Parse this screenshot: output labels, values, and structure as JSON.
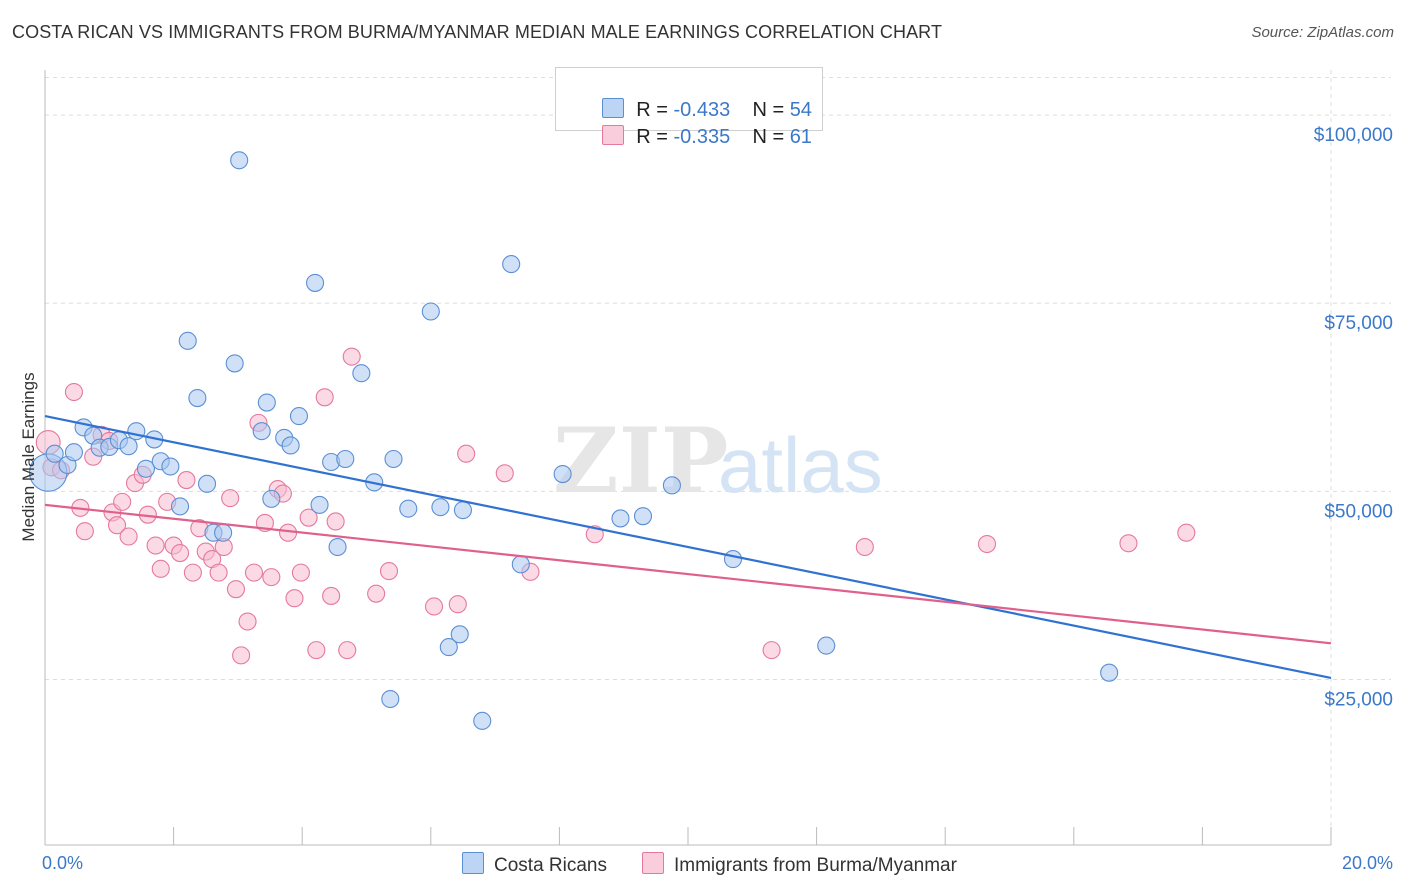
{
  "title": "COSTA RICAN VS IMMIGRANTS FROM BURMA/MYANMAR MEDIAN MALE EARNINGS CORRELATION CHART",
  "source": "Source: ZipAtlas.com",
  "colors": {
    "blue_fill": "#a9c8f0",
    "blue_stroke": "#5b8fd4",
    "blue_line": "#2f72d1",
    "pink_fill": "#f7bcd0",
    "pink_stroke": "#e5799d",
    "pink_line": "#e0608d",
    "tick_text": "#3b78c9",
    "grid": "#dddddd"
  },
  "legend": {
    "row1": {
      "r_label": "R = ",
      "r_value": "-0.433",
      "n_label": "N = ",
      "n_value": "54"
    },
    "row2": {
      "r_label": "R = ",
      "r_value": "-0.335",
      "n_label": "N = ",
      "n_value": "61"
    }
  },
  "bottom_legend": {
    "series1": "Costa Ricans",
    "series2": "Immigrants from Burma/Myanmar"
  },
  "chart_data": {
    "type": "scatter",
    "title": "COSTA RICAN VS IMMIGRANTS FROM BURMA/MYANMAR MEDIAN MALE EARNINGS CORRELATION CHART",
    "xlabel": "",
    "ylabel": "Median Male Earnings",
    "xlim": [
      0,
      20
    ],
    "ylim": [
      3000,
      105000
    ],
    "x_tick_labels": {
      "left": "0.0%",
      "right": "20.0%"
    },
    "y_ticks": [
      {
        "value": 25000,
        "label": "$25,000"
      },
      {
        "value": 50000,
        "label": "$50,000"
      },
      {
        "value": 75000,
        "label": "$75,000"
      },
      {
        "value": 100000,
        "label": "$100,000"
      }
    ],
    "grid": true,
    "legend_position": "top-center",
    "series": [
      {
        "name": "Costa Ricans",
        "r": -0.433,
        "n": 54,
        "trend": [
          [
            0,
            60000
          ],
          [
            20,
            25200
          ]
        ],
        "points": [
          [
            0.05,
            52500,
            2.2
          ],
          [
            0.15,
            55000,
            1
          ],
          [
            0.35,
            53500,
            1
          ],
          [
            0.45,
            55200,
            1
          ],
          [
            0.6,
            58500,
            1
          ],
          [
            0.75,
            57400,
            1
          ],
          [
            0.85,
            55800,
            1
          ],
          [
            1.0,
            55900,
            1
          ],
          [
            1.15,
            56800,
            1
          ],
          [
            1.3,
            56000,
            1
          ],
          [
            1.42,
            58000,
            1
          ],
          [
            1.57,
            53000,
            1
          ],
          [
            1.7,
            56900,
            1
          ],
          [
            1.8,
            54000,
            1
          ],
          [
            1.95,
            53300,
            1
          ],
          [
            2.1,
            48000,
            1
          ],
          [
            2.22,
            70000,
            1
          ],
          [
            2.37,
            62400,
            1
          ],
          [
            2.52,
            51000,
            1
          ],
          [
            2.62,
            44500,
            1
          ],
          [
            2.77,
            44500,
            1
          ],
          [
            2.95,
            67000,
            1
          ],
          [
            3.02,
            94000,
            1
          ],
          [
            3.37,
            58000,
            1
          ],
          [
            3.45,
            61800,
            1
          ],
          [
            3.52,
            49000,
            1
          ],
          [
            3.72,
            57100,
            1
          ],
          [
            3.82,
            56100,
            1
          ],
          [
            3.95,
            60000,
            1
          ],
          [
            4.2,
            77700,
            1
          ],
          [
            4.27,
            48200,
            1
          ],
          [
            4.45,
            53900,
            1
          ],
          [
            4.55,
            42600,
            1
          ],
          [
            4.67,
            54300,
            1
          ],
          [
            4.92,
            65700,
            1
          ],
          [
            5.12,
            51200,
            1
          ],
          [
            5.37,
            22400,
            1
          ],
          [
            5.42,
            54300,
            1
          ],
          [
            5.65,
            47700,
            1
          ],
          [
            6.0,
            73900,
            1
          ],
          [
            6.15,
            47900,
            1
          ],
          [
            6.28,
            29300,
            1
          ],
          [
            6.45,
            31000,
            1
          ],
          [
            6.5,
            47500,
            1
          ],
          [
            6.8,
            19500,
            1
          ],
          [
            7.25,
            80200,
            1
          ],
          [
            7.4,
            40300,
            1
          ],
          [
            8.05,
            52300,
            1
          ],
          [
            8.95,
            46400,
            1
          ],
          [
            9.3,
            46700,
            1
          ],
          [
            9.75,
            50800,
            1
          ],
          [
            10.7,
            41000,
            1
          ],
          [
            12.15,
            29500,
            1
          ],
          [
            16.55,
            25900,
            1
          ]
        ]
      },
      {
        "name": "Immigrants from Burma/Myanmar",
        "r": -0.335,
        "n": 61,
        "trend": [
          [
            0,
            48200
          ],
          [
            20,
            29800
          ]
        ],
        "points": [
          [
            0.05,
            56500,
            1.4
          ],
          [
            0.1,
            53200,
            1
          ],
          [
            0.25,
            52800,
            1
          ],
          [
            0.45,
            63200,
            1
          ],
          [
            0.55,
            47800,
            1
          ],
          [
            0.62,
            44700,
            1
          ],
          [
            0.75,
            54600,
            1
          ],
          [
            0.88,
            57500,
            1
          ],
          [
            1.0,
            56700,
            1
          ],
          [
            1.05,
            47200,
            1
          ],
          [
            1.12,
            45500,
            1
          ],
          [
            1.2,
            48600,
            1
          ],
          [
            1.3,
            44000,
            1
          ],
          [
            1.4,
            51100,
            1
          ],
          [
            1.52,
            52200,
            1
          ],
          [
            1.6,
            46900,
            1
          ],
          [
            1.72,
            42800,
            1
          ],
          [
            1.8,
            39700,
            1
          ],
          [
            1.9,
            48600,
            1
          ],
          [
            2.0,
            42800,
            1
          ],
          [
            2.1,
            41800,
            1
          ],
          [
            2.2,
            51500,
            1
          ],
          [
            2.3,
            39200,
            1
          ],
          [
            2.4,
            45100,
            1
          ],
          [
            2.5,
            42000,
            1
          ],
          [
            2.6,
            41000,
            1
          ],
          [
            2.7,
            39200,
            1
          ],
          [
            2.78,
            42600,
            1
          ],
          [
            2.88,
            49100,
            1
          ],
          [
            2.97,
            37000,
            1
          ],
          [
            3.05,
            28200,
            1
          ],
          [
            3.15,
            32700,
            1
          ],
          [
            3.25,
            39200,
            1
          ],
          [
            3.32,
            59100,
            1
          ],
          [
            3.42,
            45800,
            1
          ],
          [
            3.52,
            38600,
            1
          ],
          [
            3.62,
            50300,
            1
          ],
          [
            3.7,
            49700,
            1
          ],
          [
            3.78,
            44500,
            1
          ],
          [
            3.88,
            35800,
            1
          ],
          [
            3.98,
            39200,
            1
          ],
          [
            4.1,
            46500,
            1
          ],
          [
            4.22,
            28900,
            1
          ],
          [
            4.35,
            62500,
            1
          ],
          [
            4.45,
            36100,
            1
          ],
          [
            4.52,
            46000,
            1
          ],
          [
            4.7,
            28900,
            1
          ],
          [
            4.77,
            67900,
            1
          ],
          [
            5.15,
            36400,
            1
          ],
          [
            5.35,
            39400,
            1
          ],
          [
            6.05,
            34700,
            1
          ],
          [
            6.42,
            35000,
            1
          ],
          [
            6.55,
            55000,
            1
          ],
          [
            7.15,
            52400,
            1
          ],
          [
            7.55,
            39300,
            1
          ],
          [
            8.55,
            44300,
            1
          ],
          [
            11.3,
            28900,
            1
          ],
          [
            12.75,
            42600,
            1
          ],
          [
            14.65,
            43000,
            1
          ],
          [
            16.85,
            43100,
            1
          ],
          [
            17.75,
            44500,
            1
          ]
        ]
      }
    ]
  }
}
